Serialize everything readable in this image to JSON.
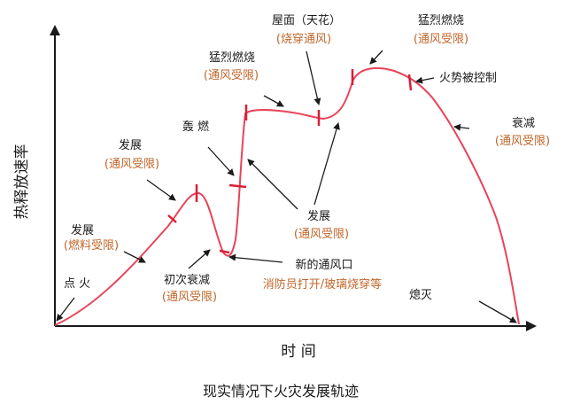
{
  "axes": {
    "y_label": "热释放速率",
    "x_label": "时 间"
  },
  "caption": "现实情况下火灾发展轨迹",
  "colors": {
    "curve": "#e8445a",
    "tick": "#d91f35",
    "black_text": "#1a1a1a",
    "orange_text": "#c0662a"
  },
  "labels": {
    "ignition": "点 火",
    "growth1_title": "发展",
    "growth1_sub": "(燃料受限)",
    "growth2_title": "发展",
    "growth2_sub": "(通风受限)",
    "initial_decay_title": "初次衰减",
    "initial_decay_sub": "(通风受限)",
    "flashover": "轰 燃",
    "vigorous1_title": "猛烈燃烧",
    "vigorous1_sub": "(通风受限)",
    "roof_title": "屋面（天花）",
    "roof_sub": "(烧穿通风)",
    "vigorous2_title": "猛烈燃烧",
    "vigorous2_sub": "(通风受限)",
    "fire_controlled": "火势被控制",
    "decay_title": "衰减",
    "decay_sub": "(通风受限)",
    "growth3_title": "发展",
    "growth3_sub": "(通风受限)",
    "new_vent_title": "新的通风口",
    "new_vent_sub": "消防员打开/玻璃烧穿等",
    "extinguish": "熄灭"
  }
}
